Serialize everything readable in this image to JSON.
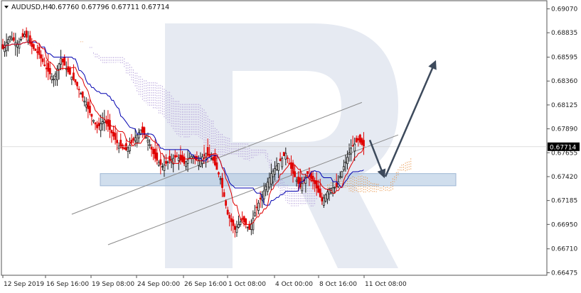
{
  "header": {
    "symbol": "AUDUSD,H4",
    "ohlc": "0.67760 0.67796 0.67711 0.67714"
  },
  "price_badge": "0.67714",
  "colors": {
    "bull": "#1a1a1a",
    "bear": "#e00000",
    "kijun": "#0000b0",
    "tenkan": "#e00000",
    "cloud_up": "#e8964a",
    "cloud_down": "#b09ad8",
    "zone_fill": "#aac2de",
    "channel": "#8a8a8a",
    "arrow": "#3d4a5c",
    "watermark": "#e6eaf2"
  },
  "chart_data": {
    "type": "candlestick",
    "symbol": "AUDUSD",
    "timeframe": "H4",
    "y_ticks": [
      "0.69070",
      "0.68835",
      "0.68595",
      "0.68360",
      "0.68125",
      "0.67890",
      "0.67655",
      "0.67420",
      "0.67185",
      "0.66950",
      "0.66710",
      "0.66475"
    ],
    "y_range": [
      0.6645,
      0.6915
    ],
    "x_ticks": [
      "12 Sep 2019",
      "16 Sep 16:00",
      "19 Sep 08:00",
      "24 Sep 00:00",
      "26 Sep 16:00",
      "1 Oct 08:00",
      "4 Oct 00:00",
      "8 Oct 16:00",
      "11 Oct 08:00"
    ],
    "last_price": 0.67714,
    "close_path": [
      [
        0,
        0.6868
      ],
      [
        4,
        0.688
      ],
      [
        8,
        0.6872
      ],
      [
        12,
        0.6882
      ],
      [
        16,
        0.687
      ],
      [
        20,
        0.6862
      ],
      [
        24,
        0.6848
      ],
      [
        28,
        0.6838
      ],
      [
        32,
        0.6858
      ],
      [
        36,
        0.6845
      ],
      [
        40,
        0.6835
      ],
      [
        44,
        0.682
      ],
      [
        48,
        0.6805
      ],
      [
        52,
        0.679
      ],
      [
        56,
        0.6798
      ],
      [
        60,
        0.6785
      ],
      [
        64,
        0.6772
      ],
      [
        68,
        0.6768
      ],
      [
        72,
        0.6778
      ],
      [
        76,
        0.6788
      ],
      [
        80,
        0.6778
      ],
      [
        84,
        0.676
      ],
      [
        88,
        0.6752
      ],
      [
        92,
        0.6758
      ],
      [
        96,
        0.6762
      ],
      [
        100,
        0.6755
      ],
      [
        104,
        0.6762
      ],
      [
        108,
        0.6758
      ],
      [
        112,
        0.6765
      ],
      [
        116,
        0.6758
      ],
      [
        120,
        0.674
      ],
      [
        124,
        0.6705
      ],
      [
        128,
        0.669
      ],
      [
        132,
        0.67
      ],
      [
        136,
        0.669
      ],
      [
        140,
        0.6712
      ],
      [
        144,
        0.6728
      ],
      [
        148,
        0.6745
      ],
      [
        152,
        0.6755
      ],
      [
        156,
        0.6765
      ],
      [
        160,
        0.6745
      ],
      [
        164,
        0.6732
      ],
      [
        168,
        0.6745
      ],
      [
        172,
        0.6735
      ],
      [
        176,
        0.6718
      ],
      [
        180,
        0.673
      ],
      [
        184,
        0.6732
      ],
      [
        188,
        0.6752
      ],
      [
        192,
        0.677
      ],
      [
        196,
        0.6778
      ],
      [
        199,
        0.67714
      ]
    ],
    "support_zone": [
      0.6733,
      0.6745
    ],
    "channel_upper": [
      [
        38,
        0.6705
      ],
      [
        198,
        0.6815
      ]
    ],
    "channel_lower": [
      [
        58,
        0.6675
      ],
      [
        218,
        0.6783
      ]
    ],
    "forecast": [
      [
        0.6778,
        0.6742
      ],
      [
        0.6742,
        0.6855
      ]
    ]
  }
}
